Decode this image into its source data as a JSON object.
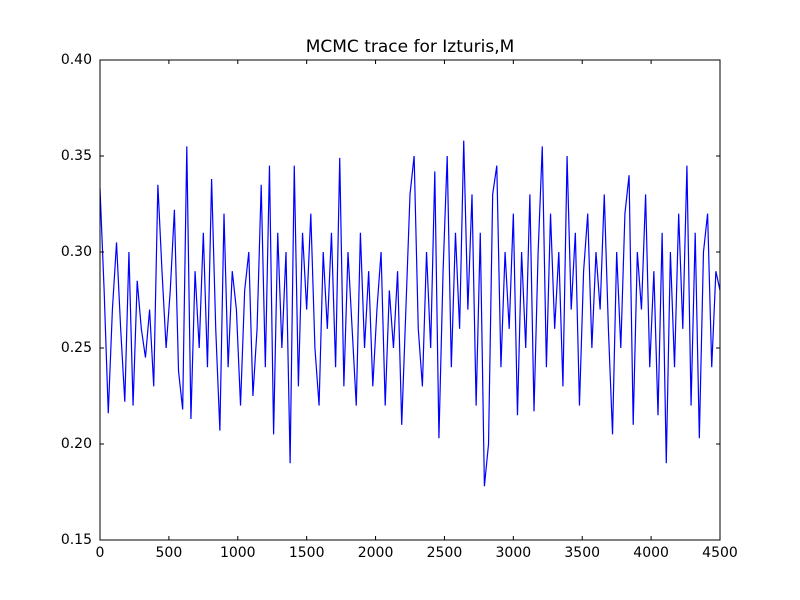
{
  "chart_data": {
    "type": "line",
    "title": "MCMC trace for Izturis,M",
    "x": [
      0,
      30,
      60,
      90,
      120,
      150,
      180,
      210,
      240,
      270,
      300,
      330,
      360,
      390,
      420,
      450,
      480,
      510,
      540,
      570,
      600,
      630,
      660,
      690,
      720,
      750,
      780,
      810,
      840,
      870,
      900,
      930,
      960,
      990,
      1020,
      1050,
      1080,
      1110,
      1140,
      1170,
      1200,
      1230,
      1260,
      1290,
      1320,
      1350,
      1380,
      1410,
      1440,
      1470,
      1500,
      1530,
      1560,
      1590,
      1620,
      1650,
      1680,
      1710,
      1740,
      1770,
      1800,
      1830,
      1860,
      1890,
      1920,
      1950,
      1980,
      2010,
      2040,
      2070,
      2100,
      2130,
      2160,
      2190,
      2220,
      2250,
      2280,
      2310,
      2340,
      2370,
      2400,
      2430,
      2460,
      2490,
      2520,
      2550,
      2580,
      2610,
      2640,
      2670,
      2700,
      2730,
      2760,
      2790,
      2820,
      2850,
      2880,
      2910,
      2940,
      2970,
      3000,
      3030,
      3060,
      3090,
      3120,
      3150,
      3180,
      3210,
      3240,
      3270,
      3300,
      3330,
      3360,
      3390,
      3420,
      3450,
      3480,
      3510,
      3540,
      3570,
      3600,
      3630,
      3660,
      3690,
      3720,
      3750,
      3780,
      3810,
      3840,
      3870,
      3900,
      3930,
      3960,
      3990,
      4020,
      4050,
      4080,
      4110,
      4140,
      4170,
      4200,
      4230,
      4260,
      4290,
      4320,
      4350,
      4380,
      4410,
      4440,
      4470,
      4500
    ],
    "series": [
      {
        "name": "Izturis,M",
        "color": "#0000ff",
        "values": [
          0.333,
          0.28,
          0.216,
          0.27,
          0.305,
          0.26,
          0.222,
          0.3,
          0.22,
          0.285,
          0.26,
          0.245,
          0.27,
          0.23,
          0.335,
          0.29,
          0.25,
          0.28,
          0.322,
          0.238,
          0.218,
          0.355,
          0.213,
          0.29,
          0.25,
          0.31,
          0.24,
          0.338,
          0.26,
          0.207,
          0.32,
          0.24,
          0.29,
          0.27,
          0.22,
          0.28,
          0.3,
          0.225,
          0.26,
          0.335,
          0.24,
          0.345,
          0.205,
          0.31,
          0.25,
          0.3,
          0.19,
          0.345,
          0.23,
          0.31,
          0.27,
          0.32,
          0.25,
          0.22,
          0.3,
          0.26,
          0.31,
          0.24,
          0.349,
          0.23,
          0.3,
          0.26,
          0.22,
          0.31,
          0.25,
          0.29,
          0.23,
          0.27,
          0.3,
          0.22,
          0.28,
          0.25,
          0.29,
          0.21,
          0.27,
          0.33,
          0.35,
          0.26,
          0.23,
          0.3,
          0.25,
          0.342,
          0.203,
          0.29,
          0.35,
          0.24,
          0.31,
          0.26,
          0.358,
          0.27,
          0.33,
          0.22,
          0.31,
          0.178,
          0.2,
          0.33,
          0.345,
          0.24,
          0.3,
          0.26,
          0.32,
          0.215,
          0.3,
          0.25,
          0.33,
          0.217,
          0.3,
          0.355,
          0.24,
          0.32,
          0.26,
          0.3,
          0.23,
          0.35,
          0.27,
          0.31,
          0.22,
          0.29,
          0.32,
          0.25,
          0.3,
          0.27,
          0.33,
          0.26,
          0.205,
          0.3,
          0.25,
          0.32,
          0.34,
          0.21,
          0.3,
          0.27,
          0.33,
          0.24,
          0.29,
          0.215,
          0.31,
          0.19,
          0.3,
          0.24,
          0.32,
          0.26,
          0.345,
          0.22,
          0.31,
          0.203,
          0.3,
          0.32,
          0.24,
          0.29,
          0.28
        ]
      }
    ],
    "xlim": [
      0,
      4500
    ],
    "xticks": [
      0,
      500,
      1000,
      1500,
      2000,
      2500,
      3000,
      3500,
      4000,
      4500
    ],
    "ylim": [
      0.15,
      0.4
    ],
    "yticks": [
      {
        "value": 0.15,
        "label": "0.15"
      },
      {
        "value": 0.2,
        "label": "0.20"
      },
      {
        "value": 0.25,
        "label": "0.25"
      },
      {
        "value": 0.3,
        "label": "0.30"
      },
      {
        "value": 0.35,
        "label": "0.35"
      },
      {
        "value": 0.4,
        "label": "0.40"
      }
    ],
    "grid": false
  }
}
